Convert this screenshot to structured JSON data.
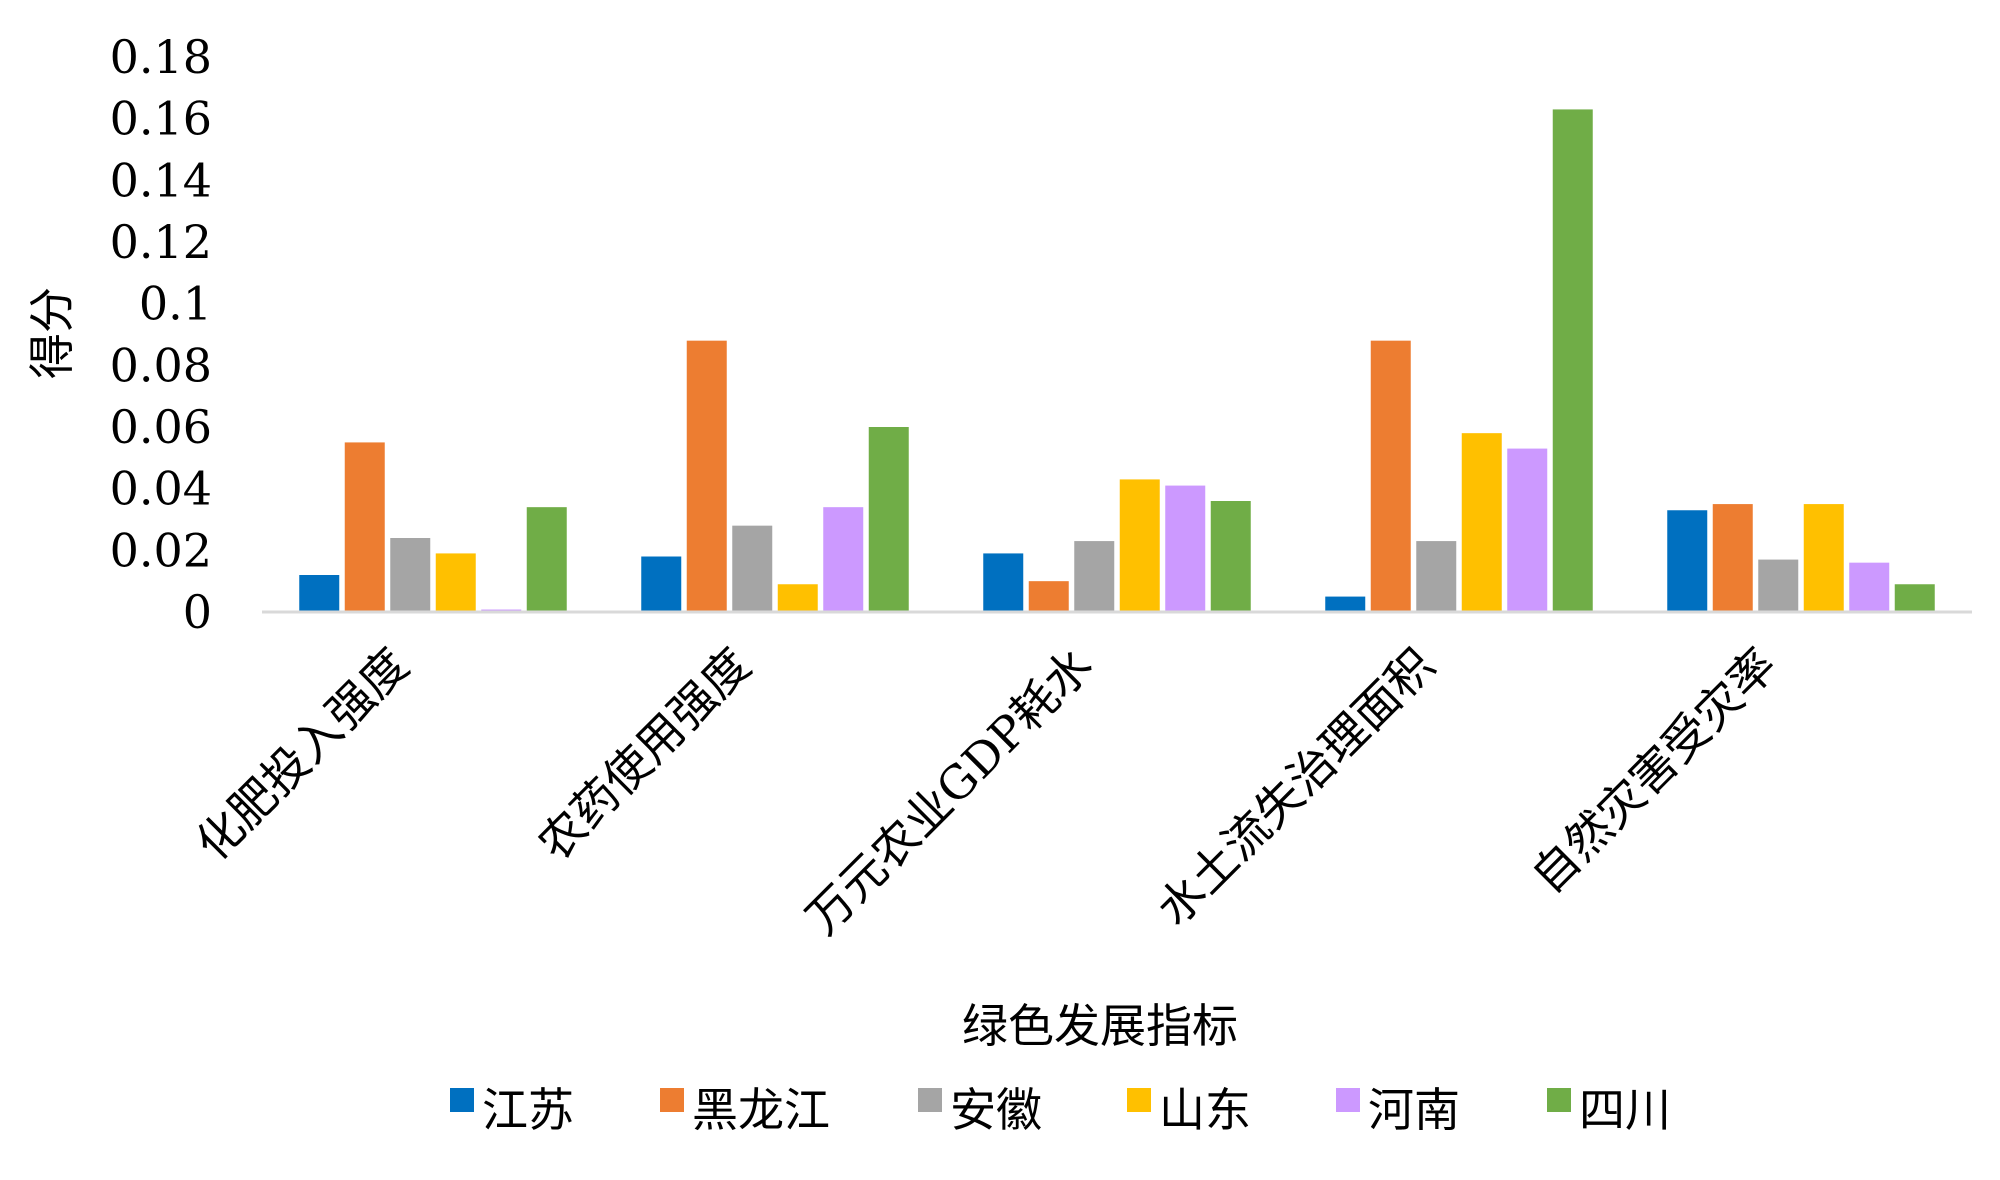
{
  "chart_data": {
    "type": "bar",
    "title": "",
    "xlabel": "绿色发展指标",
    "ylabel": "得分",
    "ylim": [
      0,
      0.18
    ],
    "yticks": [
      "0",
      "0.02",
      "0.04",
      "0.06",
      "0.08",
      "0.1",
      "0.12",
      "0.14",
      "0.16",
      "0.18"
    ],
    "grid": false,
    "legend_position": "bottom",
    "categories": [
      "化肥投入强度",
      "农药使用强度",
      "万元农业GDP耗水",
      "水土流失治理面积",
      "自然灾害受灾率"
    ],
    "series": [
      {
        "name": "江苏",
        "color": "#0070C0",
        "values": [
          0.012,
          0.018,
          0.019,
          0.005,
          0.033
        ]
      },
      {
        "name": "黑龙江",
        "color": "#ED7D31",
        "values": [
          0.055,
          0.088,
          0.01,
          0.088,
          0.035
        ]
      },
      {
        "name": "安徽",
        "color": "#A5A5A5",
        "values": [
          0.024,
          0.028,
          0.023,
          0.023,
          0.017
        ]
      },
      {
        "name": "山东",
        "color": "#FFC000",
        "values": [
          0.019,
          0.009,
          0.043,
          0.058,
          0.035
        ]
      },
      {
        "name": "河南",
        "color": "#CC99FF",
        "values": [
          0.0008,
          0.034,
          0.041,
          0.053,
          0.016
        ]
      },
      {
        "name": "四川",
        "color": "#70AD47",
        "values": [
          0.034,
          0.06,
          0.036,
          0.163,
          0.009
        ]
      }
    ]
  }
}
